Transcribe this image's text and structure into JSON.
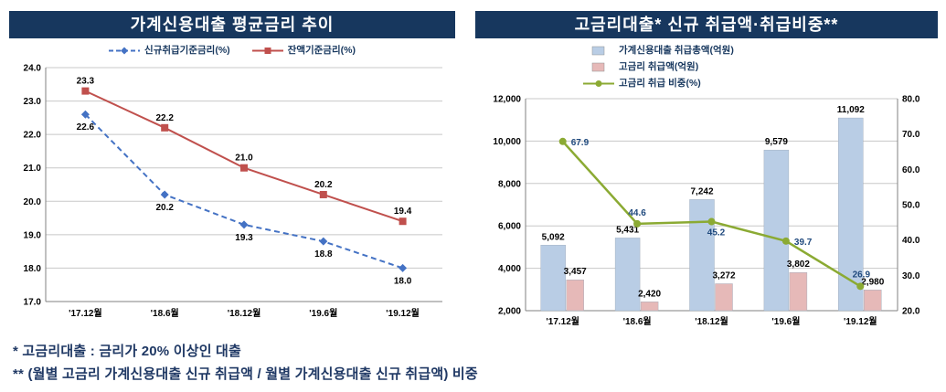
{
  "footnotes": [
    "* 고금리대출 : 금리가 20% 이상인 대출",
    "** (월별 고금리 가계신용대출 신규 취급액 / 월별 가계신용대출 신규 취급액) 비중"
  ],
  "chart_data": [
    {
      "type": "line",
      "title": "가계신용대출 평균금리 추이",
      "categories": [
        "'17.12월",
        "'18.6월",
        "'18.12월",
        "'19.6월",
        "'19.12월"
      ],
      "series": [
        {
          "name": "신규취급기준금리(%)",
          "values": [
            22.6,
            20.2,
            19.3,
            18.8,
            18.0
          ],
          "color": "#4472C4",
          "dash": true,
          "marker": "diamond",
          "label_pos": "below"
        },
        {
          "name": "잔액기준금리(%)",
          "values": [
            23.3,
            22.2,
            21.0,
            20.2,
            19.4
          ],
          "color": "#C0504D",
          "dash": false,
          "marker": "square",
          "label_pos": "above"
        }
      ],
      "ylim": [
        17.0,
        24.0
      ],
      "ytick_step": 1.0,
      "grid": true,
      "legend_position": "top"
    },
    {
      "type": "combo",
      "title": "고금리대출* 신규 취급액·취급비중**",
      "categories": [
        "'17.12월",
        "'18.6월",
        "'18.12월",
        "'19.6월",
        "'19.12월"
      ],
      "bar_series": [
        {
          "name": "가계신용대출 취급총액(억원)",
          "values": [
            5092,
            5431,
            7242,
            9579,
            11092
          ],
          "color": "#B9CDE5",
          "axis": "left"
        },
        {
          "name": "고금리 취급액(억원)",
          "values": [
            3457,
            2420,
            3272,
            3802,
            2980
          ],
          "color": "#E6B9B8",
          "axis": "left"
        }
      ],
      "line_series": [
        {
          "name": "고금리 취급 비중(%)",
          "values": [
            67.9,
            44.6,
            45.2,
            39.7,
            26.9
          ],
          "color": "#8BAA33",
          "axis": "right",
          "label_color": "#1F497D"
        }
      ],
      "ylim_left": [
        2000,
        12000
      ],
      "ytick_step_left": 2000,
      "ylim_right": [
        20.0,
        80.0
      ],
      "ytick_step_right": 10.0,
      "grid": true,
      "legend_position": "top-left"
    }
  ]
}
